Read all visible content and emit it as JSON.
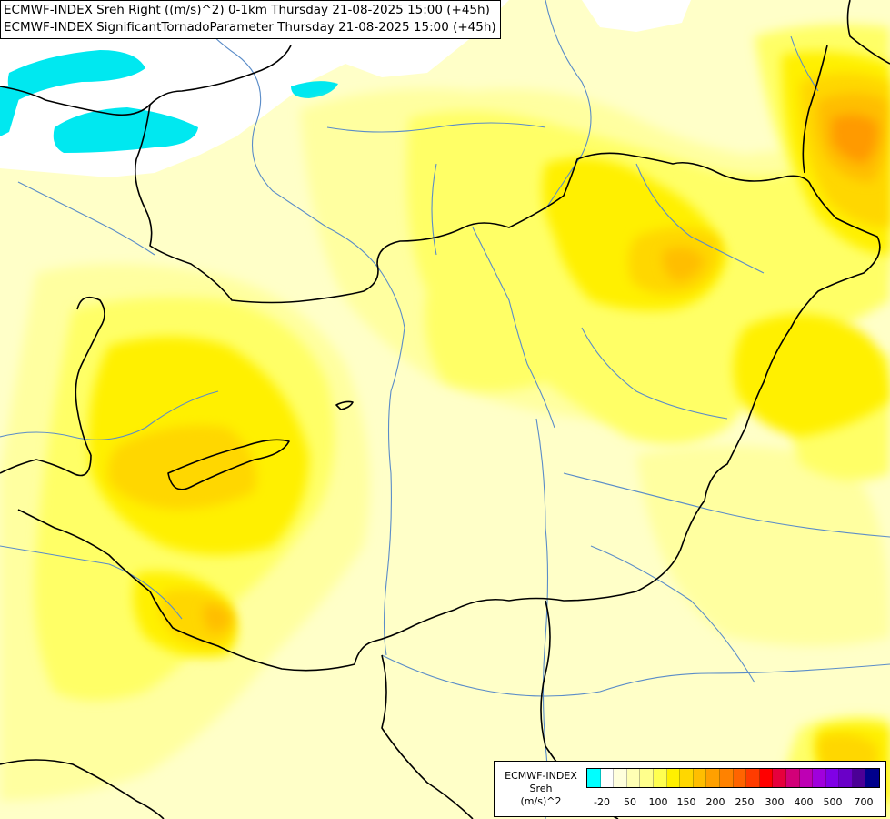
{
  "header": {
    "line1": "ECMWF-INDEX Sreh Right ((m/s)^2) 0-1km Thursday 21-08-2025 15:00 (+45h)",
    "line2": "ECMWF-INDEX SignificantTornadoParameter Thursday 21-08-2025 15:00 (+45h)"
  },
  "legend": {
    "title1": "ECMWF-INDEX",
    "title2": "Sreh",
    "unit": "(m/s)^2",
    "colors": [
      "#00ffff",
      "#ffffff",
      "#ffffdc",
      "#ffffb4",
      "#ffff8c",
      "#ffff50",
      "#fff000",
      "#ffd700",
      "#ffbe00",
      "#ffa000",
      "#ff8200",
      "#ff6400",
      "#ff3c00",
      "#ff0000",
      "#e6003c",
      "#d20078",
      "#be00b4",
      "#a000dc",
      "#8000e6",
      "#6a00c8",
      "#4b0096",
      "#00008c"
    ],
    "ticks": [
      "-20",
      "50",
      "100",
      "150",
      "200",
      "250",
      "300",
      "400",
      "500",
      "700"
    ]
  },
  "map_colors": {
    "cyan": "#00e8f0",
    "white": "#ffffff",
    "light": "#ffffc8",
    "pale": "#ffffa0",
    "yellow": "#ffff66",
    "bright": "#fff000",
    "gold": "#ffd700",
    "amber": "#ffbe00",
    "orange": "#ff9000",
    "border": "#000000",
    "river": "#5a8cc8"
  }
}
